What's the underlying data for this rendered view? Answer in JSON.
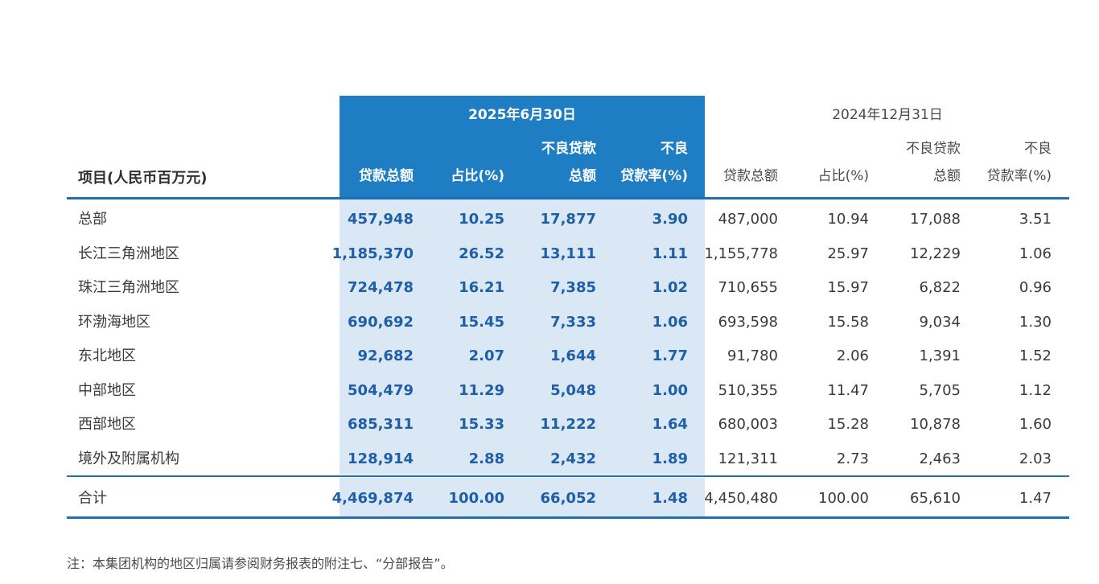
{
  "table": {
    "item_header": "项目(人民币百万元)",
    "period_2025": "2025年6月30日",
    "period_2024": "2024年12月31日",
    "columns": {
      "loans": [
        "贷款总额"
      ],
      "share": [
        "占比(%)"
      ],
      "npl": [
        "不良贷款",
        "总额"
      ],
      "npl_ratio": [
        "不良",
        "贷款率(%)"
      ]
    },
    "rows": [
      {
        "label": "总部",
        "v2025": [
          "457,948",
          "10.25",
          "17,877",
          "3.90"
        ],
        "v2024": [
          "487,000",
          "10.94",
          "17,088",
          "3.51"
        ]
      },
      {
        "label": "长江三角洲地区",
        "v2025": [
          "1,185,370",
          "26.52",
          "13,111",
          "1.11"
        ],
        "v2024": [
          "1,155,778",
          "25.97",
          "12,229",
          "1.06"
        ]
      },
      {
        "label": "珠江三角洲地区",
        "v2025": [
          "724,478",
          "16.21",
          "7,385",
          "1.02"
        ],
        "v2024": [
          "710,655",
          "15.97",
          "6,822",
          "0.96"
        ]
      },
      {
        "label": "环渤海地区",
        "v2025": [
          "690,692",
          "15.45",
          "7,333",
          "1.06"
        ],
        "v2024": [
          "693,598",
          "15.58",
          "9,034",
          "1.30"
        ]
      },
      {
        "label": "东北地区",
        "v2025": [
          "92,682",
          "2.07",
          "1,644",
          "1.77"
        ],
        "v2024": [
          "91,780",
          "2.06",
          "1,391",
          "1.52"
        ]
      },
      {
        "label": "中部地区",
        "v2025": [
          "504,479",
          "11.29",
          "5,048",
          "1.00"
        ],
        "v2024": [
          "510,355",
          "11.47",
          "5,705",
          "1.12"
        ]
      },
      {
        "label": "西部地区",
        "v2025": [
          "685,311",
          "15.33",
          "11,222",
          "1.64"
        ],
        "v2024": [
          "680,003",
          "15.28",
          "10,878",
          "1.60"
        ]
      },
      {
        "label": "境外及附属机构",
        "v2025": [
          "128,914",
          "2.88",
          "2,432",
          "1.89"
        ],
        "v2024": [
          "121,311",
          "2.73",
          "2,463",
          "2.03"
        ]
      }
    ],
    "total": {
      "label": "合计",
      "v2025": [
        "4,469,874",
        "100.00",
        "66,052",
        "1.48"
      ],
      "v2024": [
        "4,450,480",
        "100.00",
        "65,610",
        "1.47"
      ]
    }
  },
  "note": "注：本集团机构的地区归属请参阅财务报表的附注七、“分部报告”。",
  "colors": {
    "accent_blue": "#1f7dc4",
    "highlight_light": "#dae7f4",
    "rule_blue": "#1e6fb5",
    "value_blue": "#1e5fa8"
  }
}
